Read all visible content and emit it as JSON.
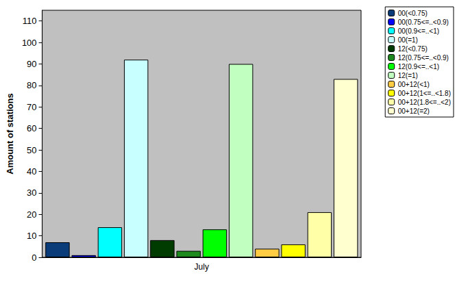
{
  "chart_data": {
    "type": "bar",
    "categories": [
      "July"
    ],
    "ylabel": "Amount of stations",
    "series": [
      {
        "name": "00(<0.75)",
        "color": "#0a3c7a",
        "values": [
          7
        ]
      },
      {
        "name": "00(0.75<=..<0.9)",
        "color": "#0000ff",
        "values": [
          1
        ]
      },
      {
        "name": "00(0.9<=..<1)",
        "color": "#00ffff",
        "values": [
          14
        ]
      },
      {
        "name": "00(=1)",
        "color": "#c8ffff",
        "values": [
          92
        ]
      },
      {
        "name": "12(<0.75)",
        "color": "#003c00",
        "values": [
          8
        ]
      },
      {
        "name": "12(0.75<=..<0.9)",
        "color": "#1e8a1e",
        "values": [
          3
        ]
      },
      {
        "name": "12(0.9<=..<1)",
        "color": "#00ff00",
        "values": [
          13
        ]
      },
      {
        "name": "12(=1)",
        "color": "#c0ffc0",
        "values": [
          90
        ]
      },
      {
        "name": "00+12(<1)",
        "color": "#ffcc44",
        "values": [
          4
        ]
      },
      {
        "name": "00+12(1<=..<1.8)",
        "color": "#ffff00",
        "values": [
          6
        ]
      },
      {
        "name": "00+12(1.8<=..<2)",
        "color": "#ffffa8",
        "values": [
          21
        ]
      },
      {
        "name": "00+12(=2)",
        "color": "#ffffd0",
        "values": [
          83
        ]
      }
    ],
    "ylim": [
      0,
      115
    ],
    "yticks": [
      0,
      10,
      20,
      30,
      40,
      50,
      60,
      70,
      80,
      90,
      100,
      110
    ],
    "grid": false,
    "legend": "top-right"
  }
}
